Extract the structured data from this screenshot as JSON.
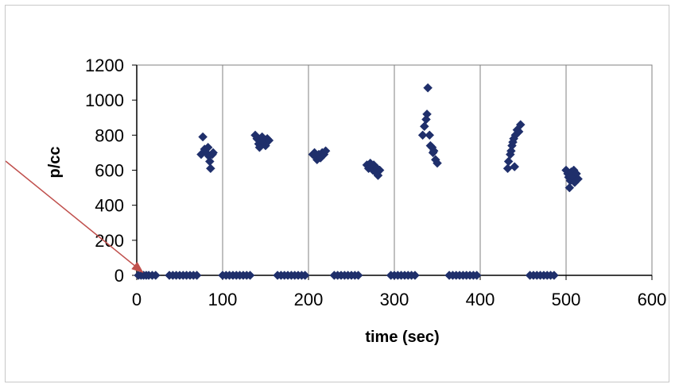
{
  "chart_data": {
    "type": "scatter",
    "title": "",
    "xlabel": "time (sec)",
    "ylabel": "p/cc",
    "xlim": [
      0,
      600
    ],
    "ylim": [
      0,
      1200
    ],
    "xticks": [
      "0",
      "100",
      "200",
      "300",
      "400",
      "500",
      "600"
    ],
    "yticks": [
      "0",
      "200",
      "400",
      "600",
      "800",
      "1000",
      "1200"
    ],
    "grid": "vertical",
    "legend": "none",
    "marker": "diamond",
    "colors": {
      "marker": "#1f2f6b",
      "axis": "#000000",
      "grid": "#808080",
      "annotation_arrow": "#c0504d"
    },
    "annotation": {
      "type": "arrow",
      "points_to": [
        5,
        0
      ]
    },
    "series": [
      {
        "values": [
          [
            2,
            0
          ],
          [
            5,
            0
          ],
          [
            8,
            0
          ],
          [
            11,
            0
          ],
          [
            14,
            0
          ],
          [
            18,
            0
          ],
          [
            22,
            0
          ],
          [
            38,
            0
          ],
          [
            42,
            0
          ],
          [
            46,
            0
          ],
          [
            50,
            0
          ],
          [
            54,
            0
          ],
          [
            58,
            0
          ],
          [
            62,
            0
          ],
          [
            66,
            0
          ],
          [
            70,
            0
          ],
          [
            75,
            690
          ],
          [
            77,
            790
          ],
          [
            79,
            720
          ],
          [
            81,
            700
          ],
          [
            83,
            730
          ],
          [
            84,
            680
          ],
          [
            85,
            650
          ],
          [
            86,
            610
          ],
          [
            88,
            690
          ],
          [
            89,
            700
          ],
          [
            100,
            0
          ],
          [
            104,
            0
          ],
          [
            108,
            0
          ],
          [
            112,
            0
          ],
          [
            116,
            0
          ],
          [
            120,
            0
          ],
          [
            124,
            0
          ],
          [
            128,
            0
          ],
          [
            132,
            0
          ],
          [
            138,
            800
          ],
          [
            140,
            780
          ],
          [
            142,
            750
          ],
          [
            143,
            730
          ],
          [
            144,
            770
          ],
          [
            146,
            790
          ],
          [
            148,
            760
          ],
          [
            150,
            740
          ],
          [
            152,
            780
          ],
          [
            154,
            770
          ],
          [
            164,
            0
          ],
          [
            168,
            0
          ],
          [
            172,
            0
          ],
          [
            176,
            0
          ],
          [
            180,
            0
          ],
          [
            184,
            0
          ],
          [
            188,
            0
          ],
          [
            192,
            0
          ],
          [
            196,
            0
          ],
          [
            205,
            690
          ],
          [
            207,
            700
          ],
          [
            208,
            680
          ],
          [
            210,
            660
          ],
          [
            212,
            690
          ],
          [
            214,
            670
          ],
          [
            216,
            700
          ],
          [
            218,
            690
          ],
          [
            220,
            710
          ],
          [
            230,
            0
          ],
          [
            234,
            0
          ],
          [
            238,
            0
          ],
          [
            242,
            0
          ],
          [
            246,
            0
          ],
          [
            250,
            0
          ],
          [
            254,
            0
          ],
          [
            258,
            0
          ],
          [
            268,
            630
          ],
          [
            270,
            610
          ],
          [
            272,
            640
          ],
          [
            274,
            620
          ],
          [
            275,
            600
          ],
          [
            276,
            630
          ],
          [
            278,
            590
          ],
          [
            280,
            610
          ],
          [
            281,
            570
          ],
          [
            283,
            600
          ],
          [
            296,
            0
          ],
          [
            300,
            0
          ],
          [
            304,
            0
          ],
          [
            308,
            0
          ],
          [
            312,
            0
          ],
          [
            316,
            0
          ],
          [
            320,
            0
          ],
          [
            324,
            0
          ],
          [
            333,
            800
          ],
          [
            335,
            850
          ],
          [
            337,
            890
          ],
          [
            338,
            920
          ],
          [
            339,
            1070
          ],
          [
            341,
            800
          ],
          [
            342,
            740
          ],
          [
            344,
            730
          ],
          [
            345,
            700
          ],
          [
            346,
            710
          ],
          [
            348,
            660
          ],
          [
            350,
            640
          ],
          [
            364,
            0
          ],
          [
            368,
            0
          ],
          [
            372,
            0
          ],
          [
            376,
            0
          ],
          [
            380,
            0
          ],
          [
            384,
            0
          ],
          [
            388,
            0
          ],
          [
            392,
            0
          ],
          [
            396,
            0
          ],
          [
            432,
            610
          ],
          [
            433,
            650
          ],
          [
            435,
            690
          ],
          [
            436,
            710
          ],
          [
            437,
            740
          ],
          [
            438,
            760
          ],
          [
            439,
            780
          ],
          [
            440,
            620
          ],
          [
            441,
            800
          ],
          [
            443,
            830
          ],
          [
            445,
            820
          ],
          [
            447,
            860
          ],
          [
            458,
            0
          ],
          [
            462,
            0
          ],
          [
            466,
            0
          ],
          [
            470,
            0
          ],
          [
            474,
            0
          ],
          [
            478,
            0
          ],
          [
            482,
            0
          ],
          [
            486,
            0
          ],
          [
            500,
            600
          ],
          [
            502,
            580
          ],
          [
            503,
            560
          ],
          [
            504,
            500
          ],
          [
            505,
            540
          ],
          [
            506,
            590
          ],
          [
            508,
            560
          ],
          [
            509,
            600
          ],
          [
            510,
            530
          ],
          [
            512,
            580
          ],
          [
            514,
            550
          ]
        ]
      }
    ]
  }
}
